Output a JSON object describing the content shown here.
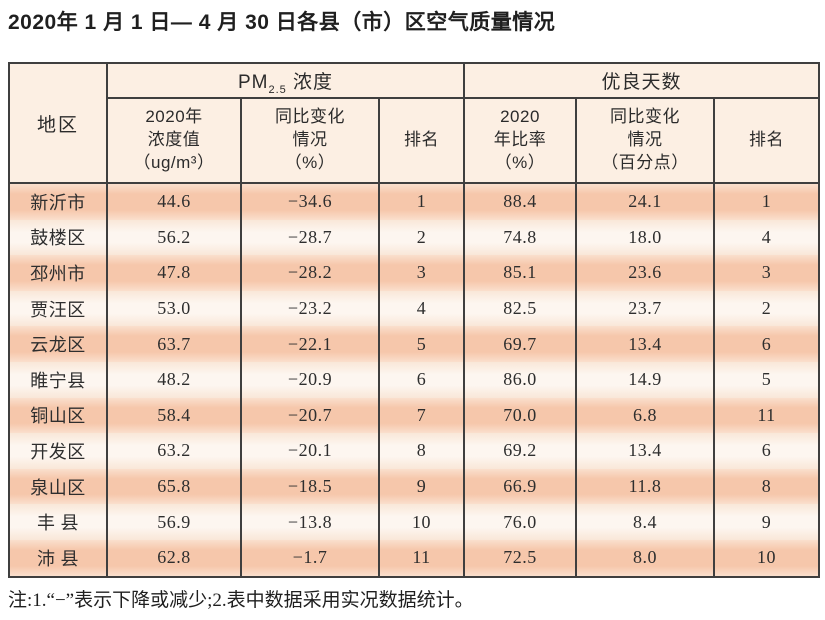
{
  "title": "2020年 1 月 1 日— 4 月 30 日各县（市）区空气质量情况",
  "note": "注:1.“−”表示下降或减少;2.表中数据采用实况数据统计。",
  "colors": {
    "row_salmon": "#f6c7ab",
    "row_cream": "#fdf6f0",
    "header_bg": "#fcefe3",
    "border": "#3f3f3f",
    "text": "#2b2b2b"
  },
  "table": {
    "header": {
      "region": "地区",
      "pm25_prefix": "PM",
      "pm25_sub": "2.5",
      "pm25_suffix": " 浓度",
      "good_days": "优良天数",
      "sub": [
        "2020年\n浓度值\n（ug/m³）",
        "同比变化\n情况\n（%）",
        "排名",
        "2020\n年比率\n（%）",
        "同比变化\n情况\n（百分点）",
        "排名"
      ]
    },
    "rows": [
      {
        "region": "新沂市",
        "pm25_value": "44.6",
        "pm25_change": "−34.6",
        "pm25_rank": "1",
        "good_rate": "88.4",
        "good_change": "24.1",
        "good_rank": "1"
      },
      {
        "region": "鼓楼区",
        "pm25_value": "56.2",
        "pm25_change": "−28.7",
        "pm25_rank": "2",
        "good_rate": "74.8",
        "good_change": "18.0",
        "good_rank": "4"
      },
      {
        "region": "邳州市",
        "pm25_value": "47.8",
        "pm25_change": "−28.2",
        "pm25_rank": "3",
        "good_rate": "85.1",
        "good_change": "23.6",
        "good_rank": "3"
      },
      {
        "region": "贾汪区",
        "pm25_value": "53.0",
        "pm25_change": "−23.2",
        "pm25_rank": "4",
        "good_rate": "82.5",
        "good_change": "23.7",
        "good_rank": "2"
      },
      {
        "region": "云龙区",
        "pm25_value": "63.7",
        "pm25_change": "−22.1",
        "pm25_rank": "5",
        "good_rate": "69.7",
        "good_change": "13.4",
        "good_rank": "6"
      },
      {
        "region": "睢宁县",
        "pm25_value": "48.2",
        "pm25_change": "−20.9",
        "pm25_rank": "6",
        "good_rate": "86.0",
        "good_change": "14.9",
        "good_rank": "5"
      },
      {
        "region": "铜山区",
        "pm25_value": "58.4",
        "pm25_change": "−20.7",
        "pm25_rank": "7",
        "good_rate": "70.0",
        "good_change": "6.8",
        "good_rank": "11"
      },
      {
        "region": "开发区",
        "pm25_value": "63.2",
        "pm25_change": "−20.1",
        "pm25_rank": "8",
        "good_rate": "69.2",
        "good_change": "13.4",
        "good_rank": "6"
      },
      {
        "region": "泉山区",
        "pm25_value": "65.8",
        "pm25_change": "−18.5",
        "pm25_rank": "9",
        "good_rate": "66.9",
        "good_change": "11.8",
        "good_rank": "8"
      },
      {
        "region": "丰 县",
        "pm25_value": "56.9",
        "pm25_change": "−13.8",
        "pm25_rank": "10",
        "good_rate": "76.0",
        "good_change": "8.4",
        "good_rank": "9"
      },
      {
        "region": "沛 县",
        "pm25_value": "62.8",
        "pm25_change": "−1.7",
        "pm25_rank": "11",
        "good_rate": "72.5",
        "good_change": "8.0",
        "good_rank": "10"
      }
    ]
  }
}
